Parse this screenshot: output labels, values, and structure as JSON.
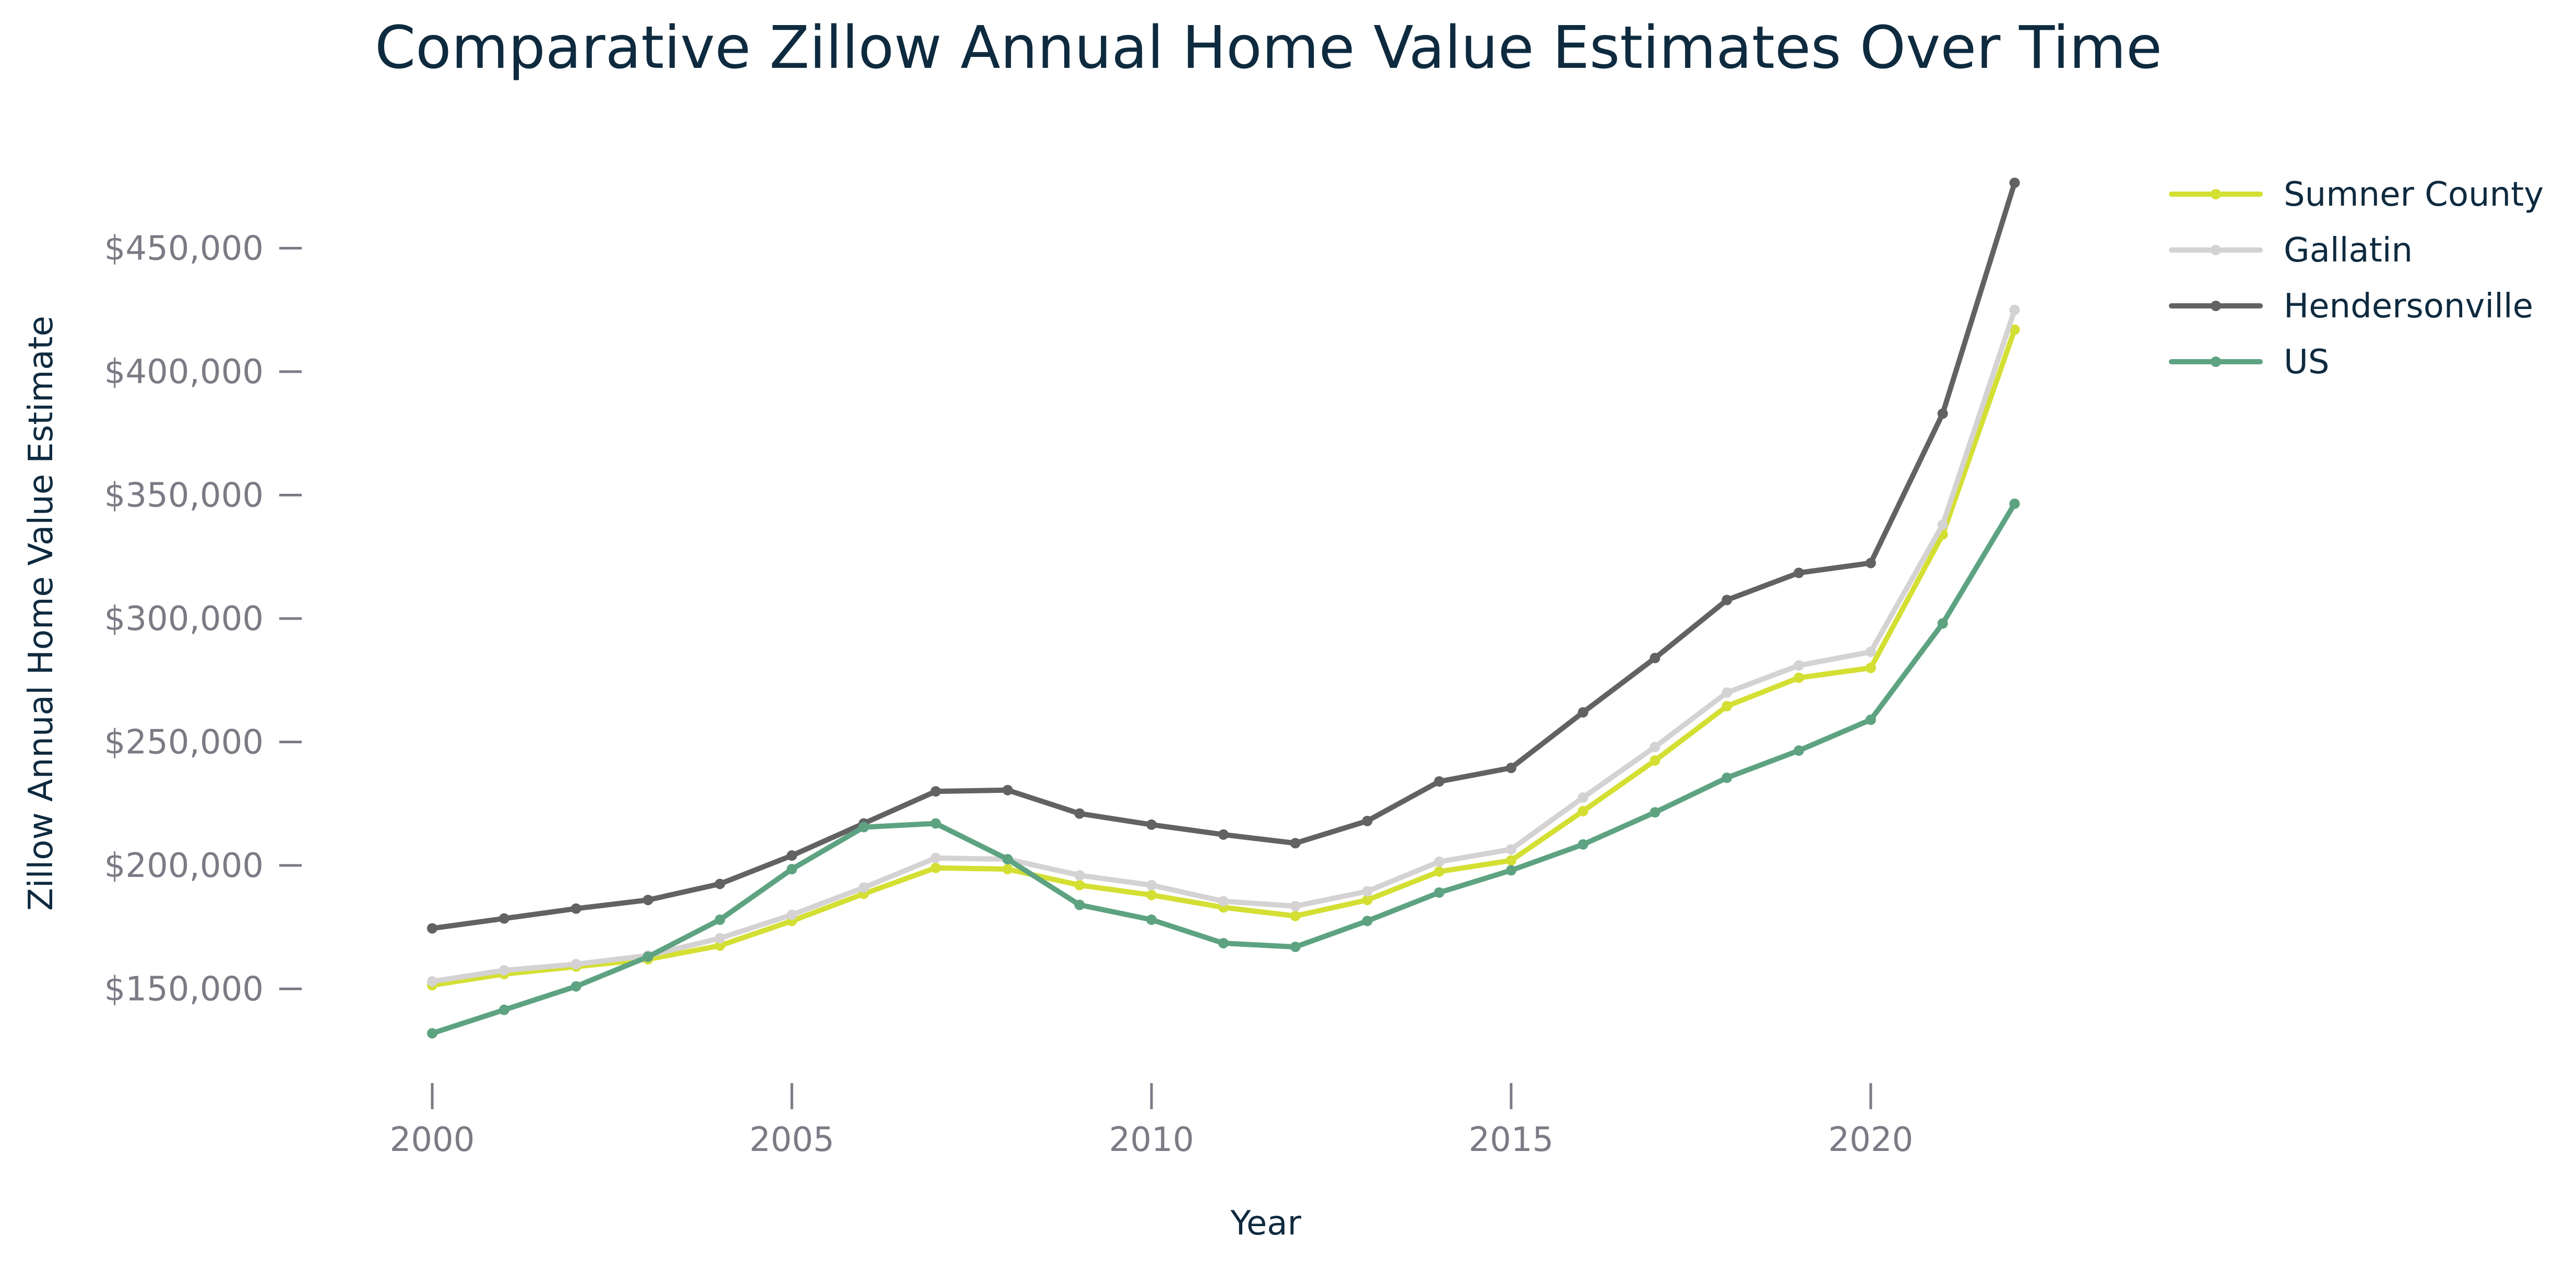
{
  "chart_data": {
    "type": "line",
    "title": "Comparative Zillow Annual Home Value Estimates Over Time",
    "xlabel": "Year",
    "ylabel": "Zillow Annual Home Value Estimate",
    "xlim": [
      1998.2,
      2023.6
    ],
    "ylim": [
      115000,
      485000
    ],
    "x_ticks": [
      2000,
      2005,
      2010,
      2015,
      2020
    ],
    "y_ticks": [
      150000,
      200000,
      250000,
      300000,
      350000,
      400000,
      450000
    ],
    "y_tick_labels": [
      "$150,000",
      "$200,000",
      "$250,000",
      "$300,000",
      "$350,000",
      "$400,000",
      "$450,000"
    ],
    "grid": false,
    "legend_position": "top-right",
    "x": [
      2000,
      2001,
      2002,
      2003,
      2004,
      2005,
      2006,
      2007,
      2008,
      2009,
      2010,
      2011,
      2012,
      2013,
      2014,
      2015,
      2016,
      2017,
      2018,
      2019,
      2020,
      2021,
      2022
    ],
    "series": [
      {
        "name": "Sumner County",
        "color": "#d4df33",
        "values": [
          151500,
          156000,
          159000,
          162000,
          167500,
          177500,
          188500,
          199000,
          198500,
          192000,
          188000,
          183000,
          179500,
          186000,
          197500,
          202000,
          222000,
          242500,
          264500,
          276000,
          280000,
          334000,
          417000
        ]
      },
      {
        "name": "Gallatin",
        "color": "#d4d2d2",
        "values": [
          153000,
          157500,
          160000,
          163500,
          170500,
          180000,
          191000,
          203000,
          202500,
          196000,
          192000,
          185500,
          183500,
          189500,
          201500,
          206500,
          227500,
          248000,
          270000,
          281000,
          286500,
          338000,
          425000
        ]
      },
      {
        "name": "Hendersonville",
        "color": "#636263",
        "values": [
          174500,
          178500,
          182500,
          186000,
          192500,
          204000,
          217000,
          230000,
          230500,
          221000,
          216500,
          212500,
          209000,
          218000,
          234000,
          239500,
          262000,
          284000,
          307500,
          318500,
          322500,
          383000,
          476500
        ]
      },
      {
        "name": "US",
        "color": "#5ea381",
        "values": [
          132000,
          141500,
          151000,
          163000,
          178000,
          198500,
          215500,
          217000,
          202500,
          184000,
          178000,
          168500,
          167000,
          177500,
          189000,
          198000,
          208500,
          221500,
          235500,
          246500,
          259000,
          298000,
          346500
        ]
      }
    ]
  }
}
